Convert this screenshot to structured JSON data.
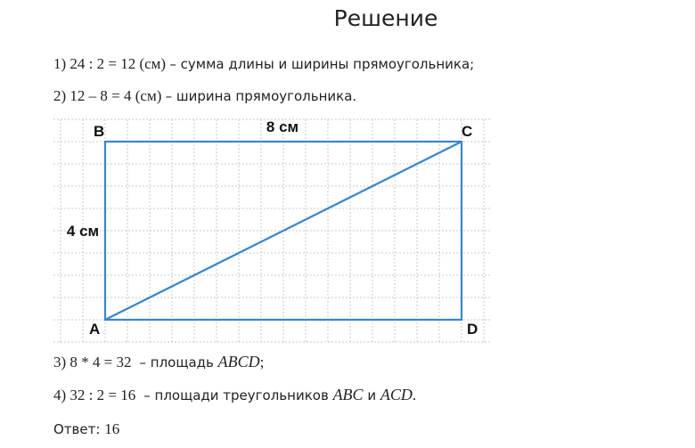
{
  "title": "Решение",
  "steps": [
    [
      "1) 24 : 2 = 12 (см) ",
      "– сумма длины и ширины прямоугольника;"
    ],
    [
      "2) 12 – 8 = 4 (см) ",
      "– ширина прямоугольника."
    ],
    [
      "3) 8 * 4 = 32 ",
      " – площадь ",
      "ABCD",
      ";"
    ],
    [
      "4) 32 : 2 = 16 ",
      " – площади треугольников ",
      "ABC",
      " и ",
      "ACD",
      "."
    ]
  ],
  "diagram": {
    "vertices": [
      "B",
      "C",
      "A",
      "D"
    ],
    "length_label": "8 см",
    "width_label": "4 см"
  },
  "answer": {
    "label": "Ответ: ",
    "value": "16"
  }
}
